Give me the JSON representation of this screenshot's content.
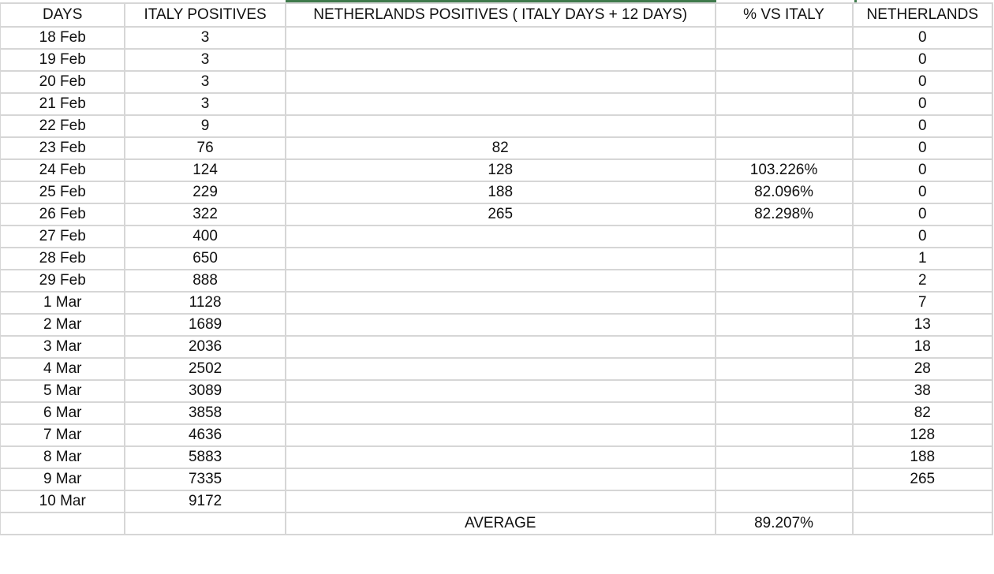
{
  "headers": [
    "DAYS",
    "ITALY POSITIVES",
    "NETHERLANDS POSITIVES ( ITALY DAYS + 12 DAYS)",
    "% VS ITALY",
    "NETHERLANDS"
  ],
  "rows": [
    [
      "18 Feb",
      "3",
      "",
      "",
      "0"
    ],
    [
      "19 Feb",
      "3",
      "",
      "",
      "0"
    ],
    [
      "20 Feb",
      "3",
      "",
      "",
      "0"
    ],
    [
      "21 Feb",
      "3",
      "",
      "",
      "0"
    ],
    [
      "22 Feb",
      "9",
      "",
      "",
      "0"
    ],
    [
      "23 Feb",
      "76",
      "82",
      "",
      "0"
    ],
    [
      "24 Feb",
      "124",
      "128",
      "103.226%",
      "0"
    ],
    [
      "25 Feb",
      "229",
      "188",
      "82.096%",
      "0"
    ],
    [
      "26 Feb",
      "322",
      "265",
      "82.298%",
      "0"
    ],
    [
      "27 Feb",
      "400",
      "",
      "",
      "0"
    ],
    [
      "28 Feb",
      "650",
      "",
      "",
      "1"
    ],
    [
      "29 Feb",
      "888",
      "",
      "",
      "2"
    ],
    [
      "1 Mar",
      "1128",
      "",
      "",
      "7"
    ],
    [
      "2 Mar",
      "1689",
      "",
      "",
      "13"
    ],
    [
      "3 Mar",
      "2036",
      "",
      "",
      "18"
    ],
    [
      "4 Mar",
      "2502",
      "",
      "",
      "28"
    ],
    [
      "5 Mar",
      "3089",
      "",
      "",
      "38"
    ],
    [
      "6 Mar",
      "3858",
      "",
      "",
      "82"
    ],
    [
      "7 Mar",
      "4636",
      "",
      "",
      "128"
    ],
    [
      "8 Mar",
      "5883",
      "",
      "",
      "188"
    ],
    [
      "9 Mar",
      "7335",
      "",
      "",
      "265"
    ],
    [
      "10 Mar",
      "9172",
      "",
      "",
      ""
    ]
  ],
  "footer": [
    "",
    "",
    "AVERAGE",
    "89.207%",
    ""
  ],
  "colors": {
    "selection": "#3f7a4c",
    "grid": "#d6d6d6"
  }
}
